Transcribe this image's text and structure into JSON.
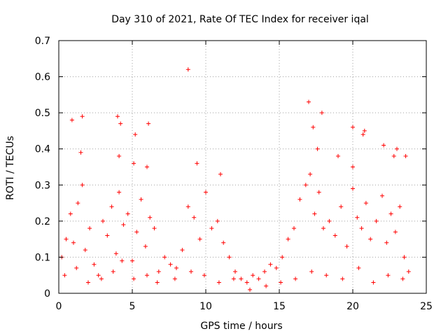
{
  "chart_data": {
    "type": "scatter",
    "title": "Day 310 of 2021, Rate Of TEC Index for receiver iqal",
    "xlabel": "GPS time / hours",
    "ylabel": "ROTI / TECUs",
    "xlim": [
      0,
      25
    ],
    "ylim": [
      0,
      0.7
    ],
    "x_ticks": [
      "0",
      "5",
      "10",
      "15",
      "20",
      "25"
    ],
    "y_ticks": [
      "0",
      "0.1",
      "0.2",
      "0.3",
      "0.4",
      "0.5",
      "0.6",
      "0.7"
    ],
    "grid": true,
    "marker": "+",
    "color": "#ff0000",
    "series": [
      {
        "name": "ROTI",
        "x": [
          0.2,
          0.5,
          0.8,
          1.0,
          1.3,
          1.6,
          1.8,
          2.1,
          2.4,
          2.7,
          3.0,
          3.3,
          3.6,
          3.9,
          4.1,
          4.4,
          4.7,
          5.0,
          5.3,
          5.6,
          5.9,
          6.2,
          6.5,
          6.8,
          7.2,
          7.6,
          8.0,
          8.4,
          8.8,
          9.2,
          9.6,
          10.0,
          10.4,
          10.8,
          11.2,
          11.6,
          12.0,
          12.4,
          12.8,
          13.2,
          13.6,
          14.0,
          14.4,
          14.8,
          15.2,
          15.6,
          16.0,
          16.4,
          16.8,
          17.1,
          17.4,
          17.7,
          18.0,
          18.4,
          18.8,
          19.2,
          19.6,
          20.0,
          20.3,
          20.6,
          20.9,
          21.2,
          21.6,
          22.0,
          22.3,
          22.6,
          22.9,
          23.2,
          23.5,
          23.8,
          0.4,
          1.2,
          2.0,
          2.9,
          3.7,
          4.3,
          5.1,
          6.0,
          6.7,
          7.9,
          9.0,
          9.9,
          10.9,
          11.9,
          13.0,
          14.1,
          15.1,
          16.1,
          17.2,
          18.2,
          19.3,
          20.4,
          21.4,
          22.4,
          23.4,
          0.9,
          1.6,
          4.0,
          4.2,
          5.2,
          6.1,
          8.8,
          17.0,
          17.3,
          17.9,
          20.0,
          20.8,
          22.1,
          23.0,
          1.5,
          4.1,
          5.1,
          6.0,
          9.4,
          11.0,
          17.6,
          19.0,
          20.0,
          20.7,
          22.8,
          23.6
        ],
        "y": [
          0.1,
          0.15,
          0.22,
          0.14,
          0.25,
          0.3,
          0.12,
          0.18,
          0.08,
          0.05,
          0.2,
          0.16,
          0.24,
          0.11,
          0.28,
          0.19,
          0.22,
          0.09,
          0.17,
          0.26,
          0.13,
          0.21,
          0.18,
          0.06,
          0.1,
          0.08,
          0.07,
          0.12,
          0.24,
          0.21,
          0.15,
          0.28,
          0.18,
          0.2,
          0.14,
          0.1,
          0.06,
          0.04,
          0.03,
          0.05,
          0.04,
          0.06,
          0.08,
          0.07,
          0.1,
          0.15,
          0.18,
          0.26,
          0.3,
          0.33,
          0.22,
          0.28,
          0.18,
          0.2,
          0.16,
          0.24,
          0.13,
          0.29,
          0.21,
          0.18,
          0.25,
          0.15,
          0.2,
          0.27,
          0.14,
          0.22,
          0.17,
          0.24,
          0.1,
          0.06,
          0.05,
          0.07,
          0.03,
          0.04,
          0.06,
          0.09,
          0.04,
          0.05,
          0.03,
          0.04,
          0.06,
          0.05,
          0.03,
          0.04,
          0.01,
          0.02,
          0.03,
          0.04,
          0.06,
          0.05,
          0.04,
          0.07,
          0.03,
          0.05,
          0.04,
          0.48,
          0.49,
          0.49,
          0.47,
          0.44,
          0.47,
          0.62,
          0.53,
          0.46,
          0.5,
          0.46,
          0.45,
          0.41,
          0.4,
          0.39,
          0.38,
          0.36,
          0.35,
          0.36,
          0.33,
          0.4,
          0.38,
          0.35,
          0.44,
          0.38,
          0.38
        ]
      }
    ]
  }
}
